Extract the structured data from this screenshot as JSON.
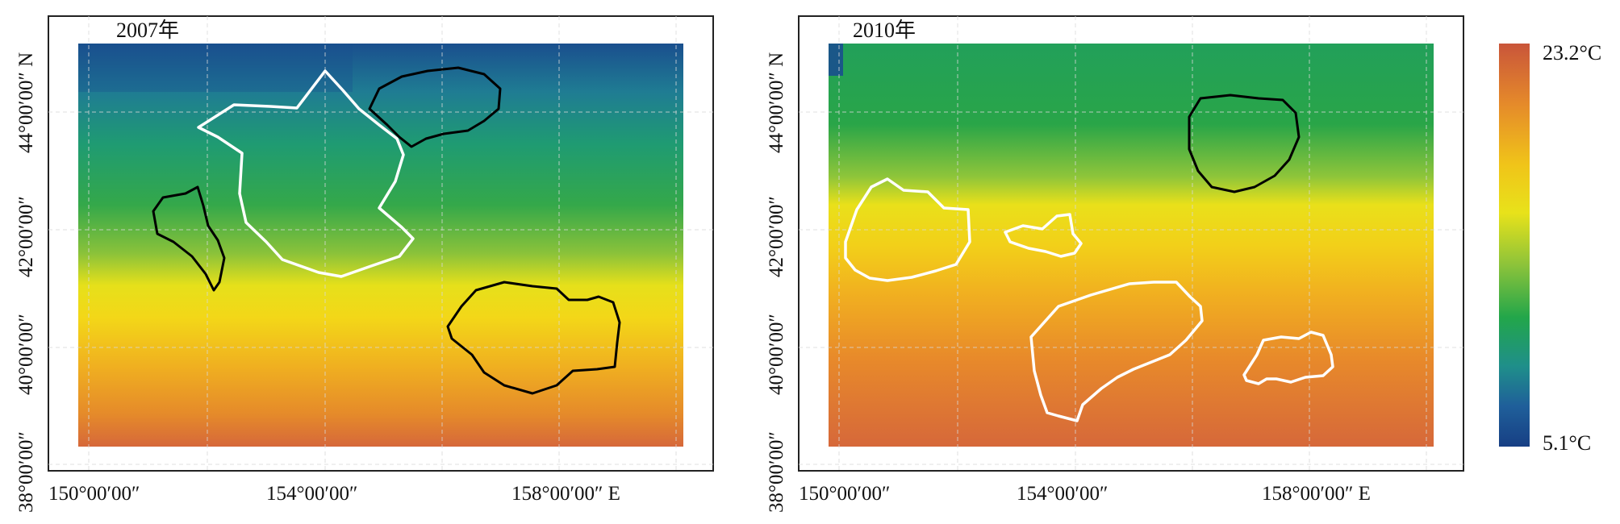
{
  "panels": [
    {
      "id": "left",
      "year_label": "2007年"
    },
    {
      "id": "right",
      "year_label": "2010年"
    }
  ],
  "axes": {
    "x_ticks": [
      "150°00′00″",
      "154°00′00″",
      "158°00′00″ E"
    ],
    "y_ticks": [
      "38°00′00″",
      "40°00′00″",
      "42°00′00″",
      "44°00′00″ N"
    ]
  },
  "colorbar": {
    "max_label": "23.2°C",
    "min_label": "5.1°C",
    "colors": [
      "#c9553a",
      "#e58a2a",
      "#f0c419",
      "#e8e21a",
      "#8cc33a",
      "#22a64a",
      "#1f8f8a",
      "#1f5f9a",
      "#173f84"
    ]
  },
  "colors": {
    "warm_anomaly_outline": "#ffffff",
    "cold_anomaly_outline": "#000000"
  }
}
